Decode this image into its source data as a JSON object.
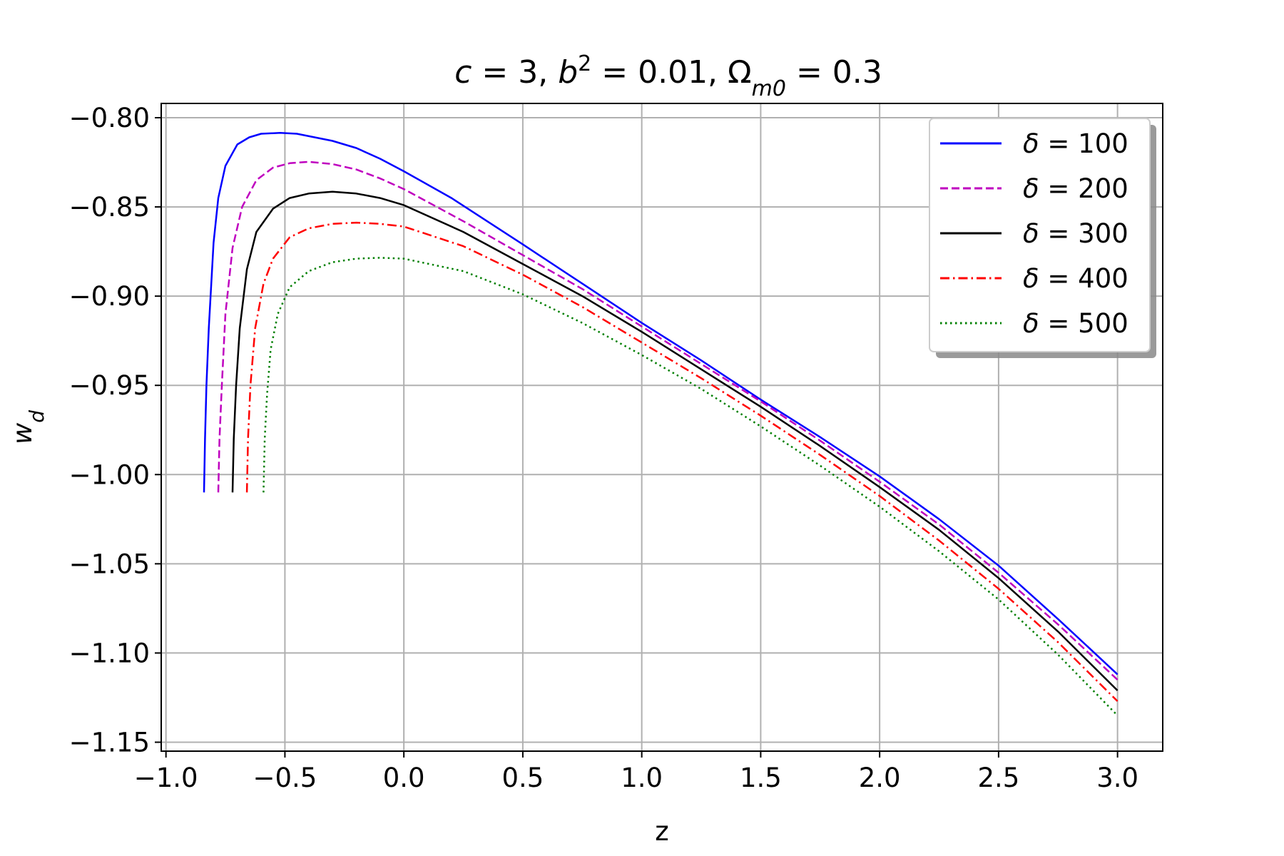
{
  "chart_data": {
    "type": "line",
    "title": {
      "parts": [
        {
          "t": "c",
          "italic": true
        },
        {
          "t": " = 3, "
        },
        {
          "t": "b",
          "italic": true
        },
        {
          "t": "2",
          "sup": true
        },
        {
          "t": " = 0.01, Ω"
        },
        {
          "t": "m0",
          "sub": true,
          "italic": true
        },
        {
          "t": " = 0.3"
        }
      ]
    },
    "xlabel": "z",
    "ylabel": {
      "base": "w",
      "sub": "d"
    },
    "xlim": [
      -1.02,
      3.19
    ],
    "ylim": [
      -1.155,
      -0.792
    ],
    "x_ticks": [
      -1.0,
      -0.5,
      0.0,
      0.5,
      1.0,
      1.5,
      2.0,
      2.5,
      3.0
    ],
    "x_tick_labels": [
      "−1.0",
      "−0.5",
      "0.0",
      "0.5",
      "1.0",
      "1.5",
      "2.0",
      "2.5",
      "3.0"
    ],
    "y_ticks": [
      -0.8,
      -0.85,
      -0.9,
      -0.95,
      -1.0,
      -1.05,
      -1.1,
      -1.15
    ],
    "y_tick_labels": [
      "−0.80",
      "−0.85",
      "−0.90",
      "−0.95",
      "−1.00",
      "−1.05",
      "−1.10",
      "−1.15"
    ],
    "grid": true,
    "legend_position": "top-right",
    "series": [
      {
        "name": {
          "sym": "δ",
          "rest": " = 100"
        },
        "color": "#0000ff",
        "dash": "solid",
        "points": [
          [
            -0.84,
            -1.01
          ],
          [
            -0.836,
            -0.98
          ],
          [
            -0.83,
            -0.95
          ],
          [
            -0.82,
            -0.918
          ],
          [
            -0.8,
            -0.87
          ],
          [
            -0.78,
            -0.845
          ],
          [
            -0.75,
            -0.827
          ],
          [
            -0.7,
            -0.815
          ],
          [
            -0.65,
            -0.811
          ],
          [
            -0.6,
            -0.809
          ],
          [
            -0.52,
            -0.8085
          ],
          [
            -0.45,
            -0.809
          ],
          [
            -0.3,
            -0.813
          ],
          [
            -0.2,
            -0.817
          ],
          [
            -0.1,
            -0.823
          ],
          [
            0.0,
            -0.83
          ],
          [
            0.2,
            -0.845
          ],
          [
            0.5,
            -0.871
          ],
          [
            0.75,
            -0.893
          ],
          [
            1.0,
            -0.915
          ],
          [
            1.25,
            -0.936
          ],
          [
            1.5,
            -0.958
          ],
          [
            1.75,
            -0.979
          ],
          [
            2.0,
            -1.001
          ],
          [
            2.25,
            -1.025
          ],
          [
            2.5,
            -1.051
          ],
          [
            2.75,
            -1.081
          ],
          [
            3.0,
            -1.112
          ]
        ]
      },
      {
        "name": {
          "sym": "δ",
          "rest": " = 200"
        },
        "color": "#bf00bf",
        "dash": "dashed",
        "points": [
          [
            -0.78,
            -1.01
          ],
          [
            -0.775,
            -0.98
          ],
          [
            -0.765,
            -0.95
          ],
          [
            -0.75,
            -0.91
          ],
          [
            -0.72,
            -0.873
          ],
          [
            -0.68,
            -0.85
          ],
          [
            -0.62,
            -0.835
          ],
          [
            -0.55,
            -0.828
          ],
          [
            -0.48,
            -0.8255
          ],
          [
            -0.4,
            -0.8247
          ],
          [
            -0.3,
            -0.826
          ],
          [
            -0.2,
            -0.829
          ],
          [
            -0.1,
            -0.834
          ],
          [
            0.0,
            -0.84
          ],
          [
            0.25,
            -0.858
          ],
          [
            0.5,
            -0.877
          ],
          [
            0.75,
            -0.896
          ],
          [
            1.0,
            -0.917
          ],
          [
            1.25,
            -0.938
          ],
          [
            1.5,
            -0.959
          ],
          [
            1.75,
            -0.981
          ],
          [
            2.0,
            -1.004
          ],
          [
            2.25,
            -1.028
          ],
          [
            2.5,
            -1.055
          ],
          [
            2.75,
            -1.084
          ],
          [
            3.0,
            -1.115
          ]
        ]
      },
      {
        "name": {
          "sym": "δ",
          "rest": " = 300"
        },
        "color": "#000000",
        "dash": "solid",
        "points": [
          [
            -0.72,
            -1.01
          ],
          [
            -0.715,
            -0.98
          ],
          [
            -0.705,
            -0.95
          ],
          [
            -0.69,
            -0.918
          ],
          [
            -0.66,
            -0.885
          ],
          [
            -0.62,
            -0.864
          ],
          [
            -0.55,
            -0.851
          ],
          [
            -0.48,
            -0.845
          ],
          [
            -0.4,
            -0.8425
          ],
          [
            -0.3,
            -0.8415
          ],
          [
            -0.2,
            -0.8425
          ],
          [
            -0.1,
            -0.845
          ],
          [
            0.0,
            -0.849
          ],
          [
            0.25,
            -0.864
          ],
          [
            0.5,
            -0.882
          ],
          [
            0.75,
            -0.9
          ],
          [
            1.0,
            -0.92
          ],
          [
            1.25,
            -0.941
          ],
          [
            1.5,
            -0.962
          ],
          [
            1.75,
            -0.984
          ],
          [
            2.0,
            -1.007
          ],
          [
            2.25,
            -1.031
          ],
          [
            2.5,
            -1.058
          ],
          [
            2.75,
            -1.088
          ],
          [
            3.0,
            -1.121
          ]
        ]
      },
      {
        "name": {
          "sym": "δ",
          "rest": " = 400"
        },
        "color": "#ff0000",
        "dash": "dashdot",
        "points": [
          [
            -0.66,
            -1.01
          ],
          [
            -0.655,
            -0.98
          ],
          [
            -0.645,
            -0.95
          ],
          [
            -0.625,
            -0.918
          ],
          [
            -0.59,
            -0.893
          ],
          [
            -0.55,
            -0.879
          ],
          [
            -0.48,
            -0.867
          ],
          [
            -0.4,
            -0.862
          ],
          [
            -0.3,
            -0.8595
          ],
          [
            -0.2,
            -0.8588
          ],
          [
            -0.1,
            -0.8595
          ],
          [
            0.0,
            -0.861
          ],
          [
            0.25,
            -0.872
          ],
          [
            0.5,
            -0.888
          ],
          [
            0.75,
            -0.906
          ],
          [
            1.0,
            -0.926
          ],
          [
            1.25,
            -0.946
          ],
          [
            1.5,
            -0.967
          ],
          [
            1.75,
            -0.989
          ],
          [
            2.0,
            -1.012
          ],
          [
            2.25,
            -1.037
          ],
          [
            2.5,
            -1.064
          ],
          [
            2.75,
            -1.094
          ],
          [
            3.0,
            -1.127
          ]
        ]
      },
      {
        "name": {
          "sym": "δ",
          "rest": " = 500"
        },
        "color": "#007f00",
        "dash": "dotted",
        "points": [
          [
            -0.59,
            -1.01
          ],
          [
            -0.585,
            -0.98
          ],
          [
            -0.575,
            -0.955
          ],
          [
            -0.56,
            -0.93
          ],
          [
            -0.53,
            -0.91
          ],
          [
            -0.48,
            -0.895
          ],
          [
            -0.4,
            -0.886
          ],
          [
            -0.3,
            -0.881
          ],
          [
            -0.2,
            -0.879
          ],
          [
            -0.1,
            -0.8785
          ],
          [
            0.0,
            -0.879
          ],
          [
            0.25,
            -0.886
          ],
          [
            0.5,
            -0.899
          ],
          [
            0.75,
            -0.915
          ],
          [
            1.0,
            -0.933
          ],
          [
            1.25,
            -0.952
          ],
          [
            1.5,
            -0.973
          ],
          [
            1.75,
            -0.995
          ],
          [
            2.0,
            -1.018
          ],
          [
            2.25,
            -1.043
          ],
          [
            2.5,
            -1.07
          ],
          [
            2.75,
            -1.101
          ],
          [
            3.0,
            -1.135
          ]
        ]
      }
    ]
  }
}
